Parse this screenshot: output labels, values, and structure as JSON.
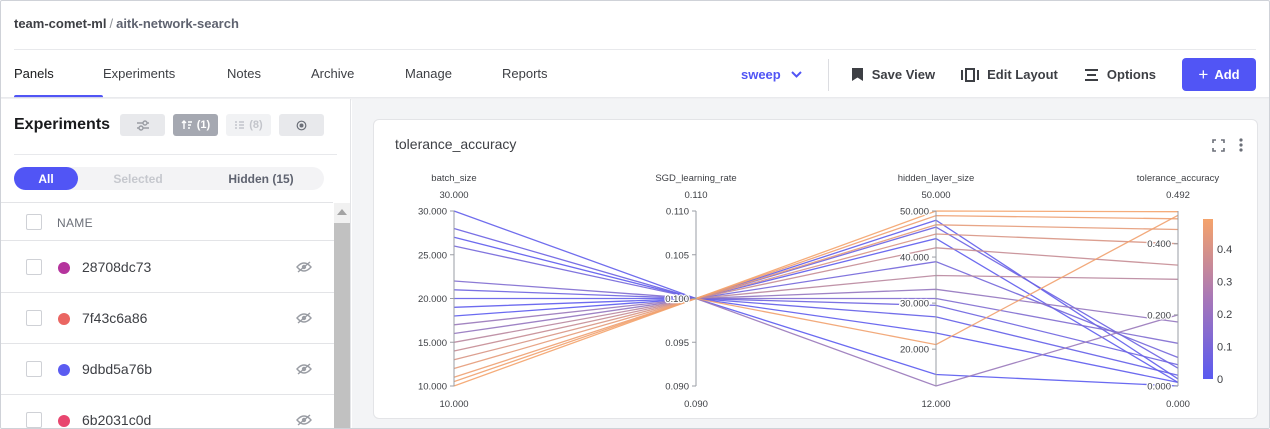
{
  "breadcrumb": {
    "workspace": "team-comet-ml",
    "separator": "/",
    "project": "aitk-network-search"
  },
  "tabs": [
    {
      "label": "Panels",
      "active": true
    },
    {
      "label": "Experiments"
    },
    {
      "label": "Notes"
    },
    {
      "label": "Archive"
    },
    {
      "label": "Manage"
    },
    {
      "label": "Reports"
    }
  ],
  "toolbar": {
    "view_selector": "sweep",
    "save_view": "Save View",
    "edit_layout": "Edit Layout",
    "options": "Options",
    "add": "Add",
    "add_icon": "+"
  },
  "sidebar": {
    "title": "Experiments",
    "sort_count": "(1)",
    "group_count": "(8)",
    "filters": {
      "all": "All",
      "selected": "Selected",
      "hidden": "Hidden (15)"
    },
    "column_header": "NAME",
    "experiments": [
      {
        "name": "28708dc73",
        "color": "#b5349d"
      },
      {
        "name": "7f43c6a86",
        "color": "#ea6662"
      },
      {
        "name": "9dbd5a76b",
        "color": "#5b5cf1"
      },
      {
        "name": "6b2031c0d",
        "color": "#e8466f"
      }
    ]
  },
  "panel": {
    "title": "tolerance_accuracy",
    "colors": {
      "low": "#5a5af0",
      "high": "#f5a36b"
    }
  },
  "chart_data": {
    "type": "parallel_coordinates",
    "title": "tolerance_accuracy",
    "axes": [
      {
        "name": "batch_size",
        "range": [
          10,
          30
        ],
        "range_labels": [
          "30.000",
          "10.000"
        ],
        "ticks": [
          "30.000",
          "25.000",
          "20.000",
          "15.000",
          "10.000"
        ]
      },
      {
        "name": "SGD_learning_rate",
        "range": [
          0.09,
          0.11
        ],
        "range_labels": [
          "0.110",
          "0.090"
        ],
        "ticks": [
          "0.110",
          "0.105",
          "0.100",
          "0.095",
          "0.090"
        ]
      },
      {
        "name": "hidden_layer_size",
        "range": [
          12,
          50
        ],
        "range_labels": [
          "50.000",
          "12.000"
        ],
        "ticks": [
          "50.000",
          "40.000",
          "30.000",
          "20.000"
        ]
      },
      {
        "name": "tolerance_accuracy",
        "range": [
          0,
          0.492
        ],
        "range_labels": [
          "0.492",
          "0.000"
        ],
        "ticks": [
          "0.400",
          "0.200",
          "0.000"
        ]
      }
    ],
    "colorbar": {
      "metric": "tolerance_accuracy",
      "range": [
        0,
        0.492
      ],
      "ticks": [
        "0.4",
        "0.3",
        "0.2",
        "0.1",
        "0"
      ]
    },
    "lines": [
      {
        "batch_size": 30.0,
        "SGD_learning_rate": 0.1,
        "hidden_layer_size": 48.0,
        "tolerance_accuracy": 0.02
      },
      {
        "batch_size": 28.0,
        "SGD_learning_rate": 0.1,
        "hidden_layer_size": 46.5,
        "tolerance_accuracy": 0.05
      },
      {
        "batch_size": 27.0,
        "SGD_learning_rate": 0.1,
        "hidden_layer_size": 44.0,
        "tolerance_accuracy": 0.01
      },
      {
        "batch_size": 26.0,
        "SGD_learning_rate": 0.1,
        "hidden_layer_size": 39.0,
        "tolerance_accuracy": 0.08
      },
      {
        "batch_size": 22.0,
        "SGD_learning_rate": 0.1,
        "hidden_layer_size": 31.0,
        "tolerance_accuracy": 0.12
      },
      {
        "batch_size": 21.0,
        "SGD_learning_rate": 0.1,
        "hidden_layer_size": 29.5,
        "tolerance_accuracy": 0.06
      },
      {
        "batch_size": 20.0,
        "SGD_learning_rate": 0.1,
        "hidden_layer_size": 27.0,
        "tolerance_accuracy": 0.03
      },
      {
        "batch_size": 19.0,
        "SGD_learning_rate": 0.1,
        "hidden_layer_size": 23.5,
        "tolerance_accuracy": 0.01
      },
      {
        "batch_size": 18.0,
        "SGD_learning_rate": 0.1,
        "hidden_layer_size": 14.5,
        "tolerance_accuracy": 0.0
      },
      {
        "batch_size": 17.0,
        "SGD_learning_rate": 0.1,
        "hidden_layer_size": 12.0,
        "tolerance_accuracy": 0.2
      },
      {
        "batch_size": 16.0,
        "SGD_learning_rate": 0.1,
        "hidden_layer_size": 33.0,
        "tolerance_accuracy": 0.18
      },
      {
        "batch_size": 15.0,
        "SGD_learning_rate": 0.1,
        "hidden_layer_size": 36.0,
        "tolerance_accuracy": 0.3
      },
      {
        "batch_size": 14.0,
        "SGD_learning_rate": 0.1,
        "hidden_layer_size": 42.0,
        "tolerance_accuracy": 0.34
      },
      {
        "batch_size": 13.0,
        "SGD_learning_rate": 0.1,
        "hidden_layer_size": 45.0,
        "tolerance_accuracy": 0.4
      },
      {
        "batch_size": 12.0,
        "SGD_learning_rate": 0.1,
        "hidden_layer_size": 47.0,
        "tolerance_accuracy": 0.44
      },
      {
        "batch_size": 11.0,
        "SGD_learning_rate": 0.1,
        "hidden_layer_size": 49.0,
        "tolerance_accuracy": 0.47
      },
      {
        "batch_size": 10.0,
        "SGD_learning_rate": 0.1,
        "hidden_layer_size": 50.0,
        "tolerance_accuracy": 0.49
      },
      {
        "batch_size": 10.5,
        "SGD_learning_rate": 0.1,
        "hidden_layer_size": 21.0,
        "tolerance_accuracy": 0.48
      }
    ]
  }
}
